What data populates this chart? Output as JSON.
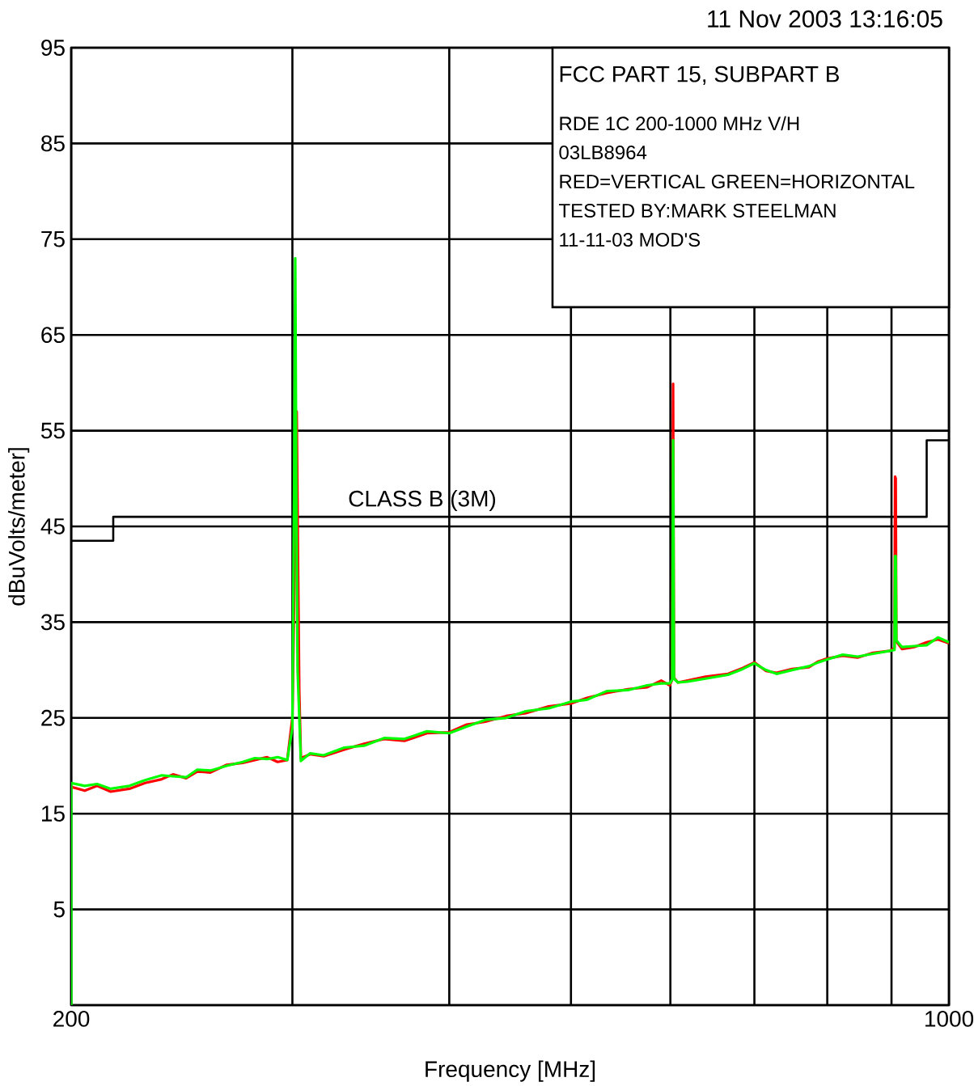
{
  "chart_data": {
    "type": "line",
    "title": "11 Nov 2003   13:16:05",
    "xlabel": "Frequency [MHz]",
    "ylabel": "dBuVolts/meter]",
    "log": "x",
    "grid": true,
    "xlim": [
      200,
      1000
    ],
    "ylim": [
      -5,
      95
    ],
    "xticks": [
      200,
      {
        "value": 300,
        "label": null
      },
      {
        "value": 400,
        "label": null
      },
      {
        "value": 500,
        "label": null
      },
      {
        "value": 600,
        "label": null
      },
      {
        "value": 700,
        "label": null
      },
      {
        "value": 800,
        "label": null
      },
      {
        "value": 900,
        "label": null
      },
      1000
    ],
    "yticks": [
      {
        "value": -5,
        "label": null
      },
      5,
      15,
      25,
      35,
      45,
      55,
      65,
      75,
      85,
      95
    ],
    "annotations": [
      "FCC PART 15, SUBPART B",
      "RDE 1C 200-1000 MHz V/H",
      "03LB8964",
      "RED=VERTICAL GREEN=HORIZONTAL",
      "TESTED BY:MARK STEELMAN",
      "11-11-03 MOD'S"
    ],
    "series": [
      {
        "name": "CLASS B (3M)",
        "color": "#000000",
        "x": [
          200,
          216,
          216,
          960,
          960,
          1000
        ],
        "values": [
          43.5,
          43.5,
          46,
          46,
          54,
          54
        ]
      },
      {
        "color": "#ff0000",
        "x": [
          200,
          205,
          209.7,
          215,
          222.5,
          229,
          236.1,
          241,
          246.9,
          252,
          258.1,
          266,
          273.9,
          280,
          286.4,
          292,
          297.2,
          300,
          301.6,
          302.4,
          303.2,
          303.8,
          304.7,
          310,
          317.7,
          330,
          342.2,
          355,
          368.5,
          384,
          400,
          413,
          427.4,
          444,
          460.3,
          480,
          500,
          515,
          533.9,
          555,
          575,
          590,
          599.4,
          602,
          603,
          604,
          608.4,
          619.3,
          640,
          666.9,
          685,
          700,
          715,
          729,
          750,
          773.6,
          787,
          800,
          823,
          845.7,
          870,
          897.4,
          905,
          906,
          907,
          908,
          917.5,
          938.2,
          960,
          980,
          1000
        ],
        "values": [
          17.8,
          17.4,
          17.9,
          17.3,
          17.6,
          18.2,
          18.6,
          19.1,
          18.7,
          19.4,
          19.3,
          20.1,
          20.3,
          20.6,
          20.9,
          20.4,
          20.6,
          25,
          45,
          57,
          40,
          28,
          20.8,
          21.2,
          21,
          21.7,
          22.3,
          22.8,
          22.6,
          23.4,
          23.5,
          24.3,
          24.6,
          25.2,
          25.5,
          26.2,
          26.5,
          27.1,
          27.6,
          28,
          28.2,
          28.9,
          28.4,
          29,
          59.9,
          29.2,
          28.7,
          28.9,
          29.3,
          29.6,
          30.2,
          30.8,
          29.9,
          29.7,
          30.1,
          30.3,
          30.9,
          31.2,
          31.5,
          31.3,
          31.8,
          32,
          32.3,
          50.2,
          50,
          33,
          32.2,
          32.4,
          32.9,
          33.2,
          32.8
        ]
      },
      {
        "color": "#00ff00",
        "x": [
          200,
          200,
          205,
          209.7,
          215,
          222.5,
          229,
          236.1,
          241,
          246.9,
          252,
          258.1,
          266,
          273.9,
          280,
          286.4,
          292,
          297.2,
          300,
          301,
          301.6,
          302.3,
          302.9,
          304.7,
          310,
          317.7,
          330,
          342.2,
          355,
          368.5,
          384,
          400,
          413,
          427.4,
          444,
          460.3,
          480,
          500,
          515,
          533.9,
          555,
          575,
          590,
          599.4,
          602,
          603,
          604,
          608.4,
          619.3,
          640,
          666.9,
          685,
          700,
          715,
          729,
          750,
          773.6,
          787,
          800,
          823,
          845.7,
          870,
          897.4,
          905,
          906,
          907,
          908,
          917.5,
          938.2,
          960,
          980,
          1000
        ],
        "values": [
          -5,
          18.2,
          17.9,
          18.1,
          17.6,
          17.9,
          18.5,
          19,
          18.9,
          18.8,
          19.6,
          19.5,
          20,
          20.4,
          20.8,
          20.7,
          20.9,
          20.6,
          24,
          50,
          73,
          45,
          30,
          20.5,
          21.3,
          21.1,
          21.9,
          22.1,
          22.9,
          22.8,
          23.6,
          23.4,
          24.1,
          24.8,
          25,
          25.7,
          26,
          26.7,
          26.9,
          27.8,
          27.9,
          28.4,
          28.6,
          28.6,
          29,
          54,
          29.1,
          28.7,
          28.8,
          29.1,
          29.5,
          30.1,
          30.7,
          30,
          29.6,
          30,
          30.4,
          30.8,
          31.1,
          31.6,
          31.4,
          31.7,
          32,
          32.1,
          41.9,
          41.9,
          33.1,
          32.4,
          32.5,
          32.6,
          33.4,
          32.9
        ]
      }
    ]
  }
}
